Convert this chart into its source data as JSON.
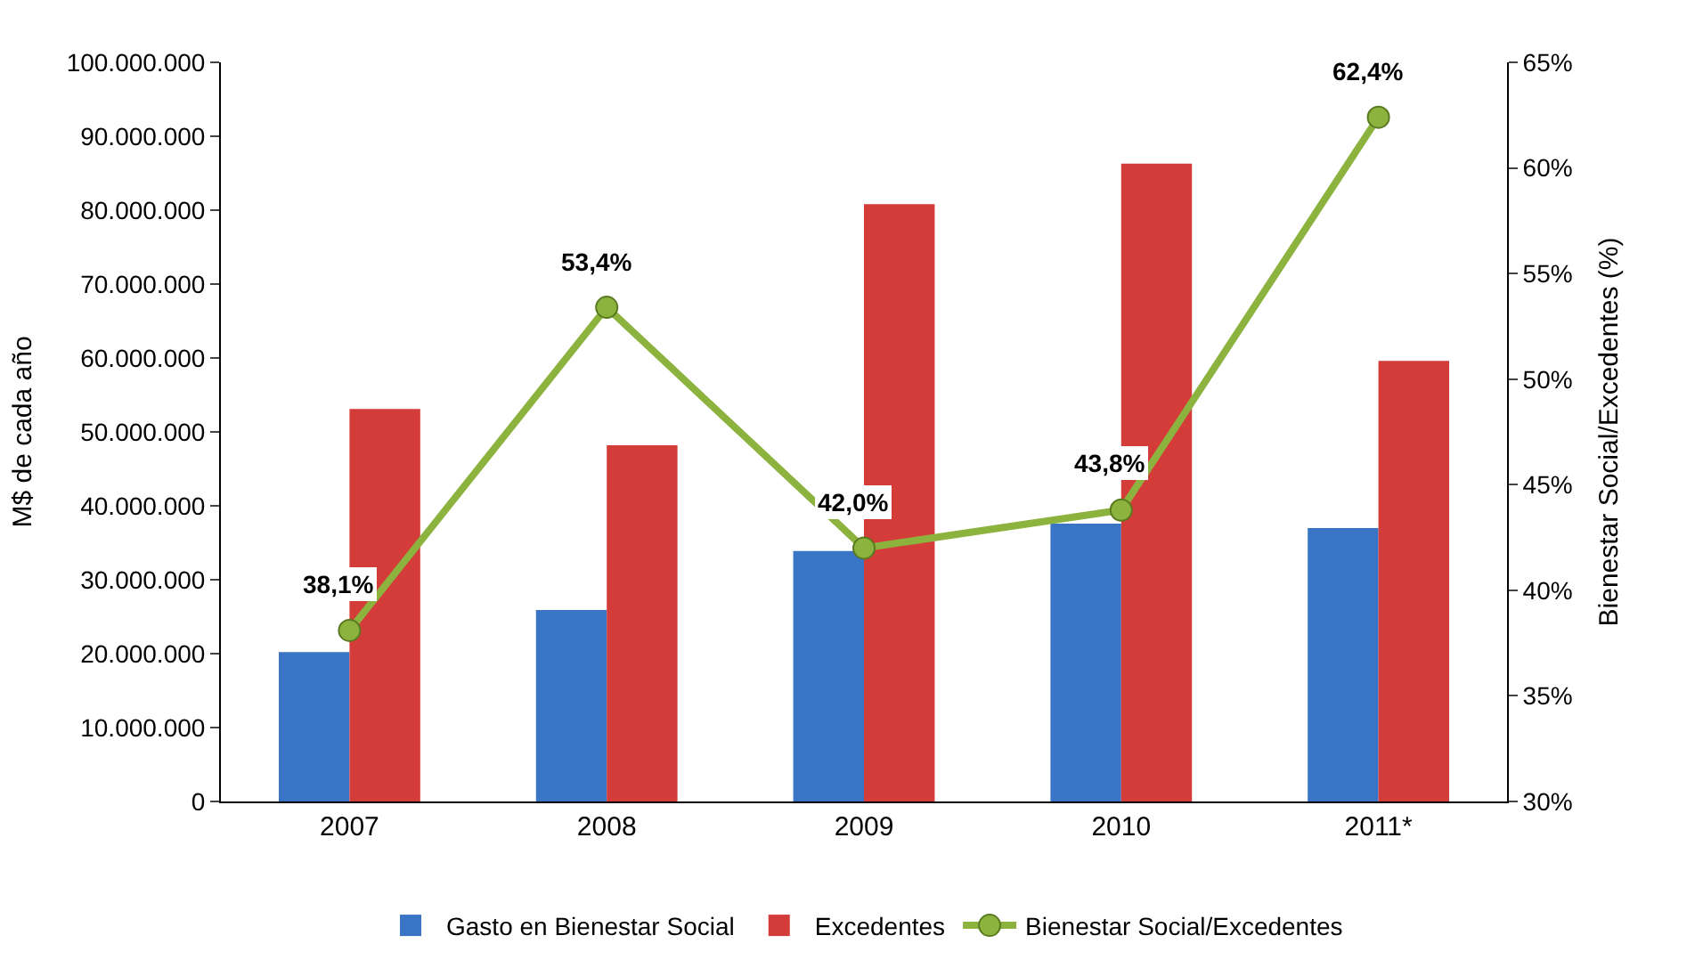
{
  "chart_data": {
    "type": "bar",
    "categories": [
      "2007",
      "2008",
      "2009",
      "2010",
      "2011*"
    ],
    "ylabel": "M$ de cada año",
    "y2label": "Bienestar Social/Excedentes (%)",
    "series": [
      {
        "name": "Gasto en Bienestar Social",
        "color": "#3a74c4",
        "values": [
          20200000,
          25900000,
          33900000,
          37600000,
          37000000
        ]
      },
      {
        "name": "Excedentes",
        "color": "#d43c3a",
        "values": [
          53100000,
          48200000,
          80800000,
          86300000,
          59600000
        ]
      },
      {
        "name": "Bienestar Social/Excedentes",
        "type": "line",
        "axis": "y2",
        "color": "#8db33f",
        "marker": "circle",
        "values": [
          38.1,
          53.4,
          42.0,
          43.8,
          62.4
        ],
        "value_labels": [
          "38,1%",
          "53,4%",
          "42,0%",
          "43,8%",
          "62,4%"
        ]
      }
    ],
    "ylim": [
      0,
      100000000
    ],
    "yticks": [
      {
        "value": 0,
        "label": "0"
      },
      {
        "value": 10000000,
        "label": "10.000.000"
      },
      {
        "value": 20000000,
        "label": "20.000.000"
      },
      {
        "value": 30000000,
        "label": "30.000.000"
      },
      {
        "value": 40000000,
        "label": "40.000.000"
      },
      {
        "value": 50000000,
        "label": "50.000.000"
      },
      {
        "value": 60000000,
        "label": "60.000.000"
      },
      {
        "value": 70000000,
        "label": "70.000.000"
      },
      {
        "value": 80000000,
        "label": "80.000.000"
      },
      {
        "value": 90000000,
        "label": "90.000.000"
      },
      {
        "value": 100000000,
        "label": "100.000.000"
      }
    ],
    "y2lim": [
      30,
      65
    ],
    "y2ticks": [
      {
        "value": 30,
        "label": "30%"
      },
      {
        "value": 35,
        "label": "35%"
      },
      {
        "value": 40,
        "label": "40%"
      },
      {
        "value": 45,
        "label": "45%"
      },
      {
        "value": 50,
        "label": "50%"
      },
      {
        "value": 55,
        "label": "55%"
      },
      {
        "value": 60,
        "label": "60%"
      },
      {
        "value": 65,
        "label": "65%"
      }
    ],
    "legend": "bottom"
  }
}
